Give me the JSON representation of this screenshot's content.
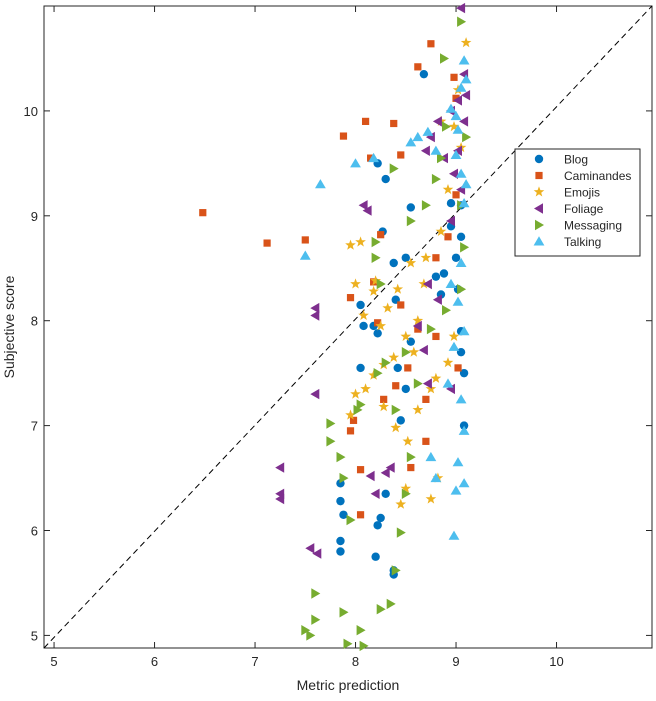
{
  "chart_data": {
    "type": "scatter",
    "xlabel": "Metric prediction",
    "ylabel": "Subjective score",
    "xlim": [
      4.9,
      10.95
    ],
    "ylim": [
      4.88,
      11.0
    ],
    "x_ticks": [
      5,
      6,
      7,
      8,
      9,
      10
    ],
    "y_ticks": [
      5,
      6,
      7,
      8,
      9,
      10
    ],
    "x_tick_labels": [
      "5",
      "6",
      "7",
      "8",
      "9",
      "10"
    ],
    "y_tick_labels": [
      "5",
      "6",
      "7",
      "8",
      "9",
      "10"
    ],
    "grid": false,
    "legend_position": "right",
    "reference_line": {
      "style": "dashed",
      "color": "#000000",
      "from": [
        4.9,
        4.88
      ],
      "to": [
        10.95,
        11.0
      ]
    },
    "series": [
      {
        "name": "Blog",
        "marker": "circle",
        "color": "#0072BD",
        "points": [
          [
            8.22,
            9.5
          ],
          [
            8.3,
            9.35
          ],
          [
            8.68,
            10.35
          ],
          [
            8.27,
            8.85
          ],
          [
            8.55,
            9.08
          ],
          [
            8.38,
            8.55
          ],
          [
            8.5,
            8.6
          ],
          [
            8.88,
            8.45
          ],
          [
            8.05,
            8.15
          ],
          [
            8.18,
            7.95
          ],
          [
            8.08,
            7.95
          ],
          [
            8.22,
            7.88
          ],
          [
            8.4,
            8.2
          ],
          [
            8.55,
            7.8
          ],
          [
            8.8,
            8.42
          ],
          [
            8.85,
            8.25
          ],
          [
            8.42,
            7.55
          ],
          [
            8.5,
            7.35
          ],
          [
            8.45,
            7.05
          ],
          [
            8.05,
            7.55
          ],
          [
            7.85,
            6.45
          ],
          [
            7.85,
            6.28
          ],
          [
            7.88,
            6.15
          ],
          [
            7.85,
            5.9
          ],
          [
            7.85,
            5.8
          ],
          [
            8.25,
            6.12
          ],
          [
            8.22,
            6.05
          ],
          [
            8.3,
            6.35
          ],
          [
            8.2,
            5.75
          ],
          [
            8.38,
            5.62
          ],
          [
            8.38,
            5.58
          ],
          [
            8.95,
            9.12
          ],
          [
            8.95,
            8.9
          ],
          [
            9.05,
            8.8
          ],
          [
            9.0,
            8.6
          ],
          [
            9.05,
            7.9
          ],
          [
            9.05,
            7.7
          ],
          [
            9.08,
            7.0
          ],
          [
            9.08,
            7.5
          ],
          [
            9.05,
            9.1
          ],
          [
            9.02,
            8.3
          ]
        ]
      },
      {
        "name": "Caminandes",
        "marker": "square",
        "color": "#D95319",
        "points": [
          [
            6.48,
            9.03
          ],
          [
            7.12,
            8.74
          ],
          [
            7.5,
            8.77
          ],
          [
            7.88,
            9.76
          ],
          [
            8.1,
            9.9
          ],
          [
            8.15,
            9.55
          ],
          [
            8.45,
            9.58
          ],
          [
            8.62,
            10.42
          ],
          [
            8.75,
            10.64
          ],
          [
            8.38,
            9.88
          ],
          [
            8.25,
            8.82
          ],
          [
            8.18,
            8.37
          ],
          [
            7.95,
            8.22
          ],
          [
            8.22,
            7.98
          ],
          [
            8.45,
            8.15
          ],
          [
            8.62,
            7.92
          ],
          [
            8.8,
            7.85
          ],
          [
            8.52,
            7.55
          ],
          [
            8.4,
            7.38
          ],
          [
            8.28,
            7.25
          ],
          [
            8.7,
            7.25
          ],
          [
            7.98,
            7.05
          ],
          [
            7.95,
            6.95
          ],
          [
            8.05,
            6.58
          ],
          [
            8.05,
            6.15
          ],
          [
            8.55,
            6.6
          ],
          [
            8.7,
            6.85
          ],
          [
            8.8,
            8.6
          ],
          [
            8.92,
            8.8
          ],
          [
            9.0,
            9.2
          ],
          [
            9.0,
            10.12
          ],
          [
            8.98,
            10.32
          ],
          [
            9.02,
            7.55
          ]
        ]
      },
      {
        "name": "Emojis",
        "marker": "pentagram",
        "color": "#EDB120",
        "points": [
          [
            7.95,
            8.72
          ],
          [
            8.0,
            8.35
          ],
          [
            8.08,
            8.05
          ],
          [
            8.18,
            8.28
          ],
          [
            8.32,
            8.12
          ],
          [
            8.42,
            8.3
          ],
          [
            8.55,
            8.55
          ],
          [
            8.7,
            8.6
          ],
          [
            8.85,
            8.85
          ],
          [
            8.92,
            9.25
          ],
          [
            8.98,
            9.85
          ],
          [
            9.02,
            10.2
          ],
          [
            9.1,
            10.65
          ],
          [
            9.05,
            9.65
          ],
          [
            8.85,
            9.9
          ],
          [
            8.68,
            8.35
          ],
          [
            8.62,
            8.0
          ],
          [
            8.5,
            7.85
          ],
          [
            8.38,
            7.65
          ],
          [
            8.28,
            7.58
          ],
          [
            8.18,
            7.48
          ],
          [
            8.1,
            7.35
          ],
          [
            8.0,
            7.3
          ],
          [
            7.95,
            7.1
          ],
          [
            8.28,
            7.18
          ],
          [
            8.4,
            6.98
          ],
          [
            8.52,
            6.85
          ],
          [
            8.62,
            7.15
          ],
          [
            8.75,
            7.35
          ],
          [
            8.8,
            7.45
          ],
          [
            8.92,
            7.6
          ],
          [
            8.98,
            7.85
          ],
          [
            8.5,
            6.4
          ],
          [
            8.45,
            6.25
          ],
          [
            8.75,
            6.3
          ],
          [
            8.82,
            6.5
          ],
          [
            8.58,
            7.7
          ],
          [
            8.25,
            7.95
          ],
          [
            8.2,
            8.38
          ],
          [
            8.05,
            8.75
          ]
        ]
      },
      {
        "name": "Foliage",
        "marker": "triangle-left",
        "color": "#7E2F8E",
        "points": [
          [
            9.05,
            10.98
          ],
          [
            9.08,
            10.35
          ],
          [
            9.02,
            10.1
          ],
          [
            8.95,
            10.0
          ],
          [
            8.82,
            9.9
          ],
          [
            8.75,
            9.75
          ],
          [
            8.7,
            9.62
          ],
          [
            8.88,
            9.55
          ],
          [
            8.98,
            9.4
          ],
          [
            9.05,
            9.25
          ],
          [
            8.12,
            9.05
          ],
          [
            8.08,
            9.1
          ],
          [
            7.6,
            8.12
          ],
          [
            7.6,
            8.05
          ],
          [
            7.25,
            6.6
          ],
          [
            7.25,
            6.35
          ],
          [
            7.25,
            6.3
          ],
          [
            7.62,
            5.78
          ],
          [
            7.55,
            5.83
          ],
          [
            7.6,
            7.3
          ],
          [
            8.3,
            6.55
          ],
          [
            8.35,
            6.6
          ],
          [
            8.2,
            6.35
          ],
          [
            8.15,
            6.52
          ],
          [
            8.72,
            7.4
          ],
          [
            8.68,
            7.72
          ],
          [
            8.62,
            7.95
          ],
          [
            8.72,
            8.35
          ],
          [
            8.82,
            8.2
          ],
          [
            8.95,
            8.95
          ],
          [
            9.02,
            9.62
          ],
          [
            9.08,
            9.9
          ],
          [
            9.1,
            10.15
          ],
          [
            8.95,
            7.35
          ]
        ]
      },
      {
        "name": "Messaging",
        "marker": "triangle-right",
        "color": "#77AC30",
        "points": [
          [
            9.05,
            10.85
          ],
          [
            8.88,
            10.5
          ],
          [
            8.9,
            9.85
          ],
          [
            8.85,
            9.55
          ],
          [
            8.8,
            9.35
          ],
          [
            8.7,
            9.1
          ],
          [
            8.55,
            8.95
          ],
          [
            8.38,
            9.45
          ],
          [
            8.2,
            8.75
          ],
          [
            8.25,
            8.35
          ],
          [
            8.3,
            7.6
          ],
          [
            8.22,
            7.5
          ],
          [
            8.05,
            7.2
          ],
          [
            8.02,
            7.15
          ],
          [
            7.75,
            7.02
          ],
          [
            7.75,
            6.85
          ],
          [
            7.85,
            6.7
          ],
          [
            7.95,
            6.1
          ],
          [
            7.88,
            6.5
          ],
          [
            7.6,
            5.4
          ],
          [
            7.6,
            5.15
          ],
          [
            7.55,
            5.0
          ],
          [
            7.5,
            5.05
          ],
          [
            7.88,
            5.22
          ],
          [
            8.05,
            5.05
          ],
          [
            7.92,
            4.92
          ],
          [
            8.08,
            4.9
          ],
          [
            8.25,
            5.25
          ],
          [
            8.35,
            5.3
          ],
          [
            8.4,
            5.62
          ],
          [
            8.45,
            5.98
          ],
          [
            8.5,
            6.35
          ],
          [
            8.55,
            6.7
          ],
          [
            8.4,
            7.15
          ],
          [
            8.62,
            7.4
          ],
          [
            8.75,
            7.92
          ],
          [
            8.9,
            8.1
          ],
          [
            9.05,
            8.3
          ],
          [
            9.08,
            8.7
          ],
          [
            9.05,
            9.1
          ],
          [
            9.1,
            9.75
          ],
          [
            8.2,
            8.6
          ],
          [
            8.5,
            7.7
          ]
        ]
      },
      {
        "name": "Talking",
        "marker": "triangle-up",
        "color": "#4DBEEE",
        "points": [
          [
            7.5,
            8.62
          ],
          [
            7.65,
            9.3
          ],
          [
            8.0,
            9.5
          ],
          [
            8.18,
            9.55
          ],
          [
            8.55,
            9.7
          ],
          [
            8.62,
            9.75
          ],
          [
            8.72,
            9.8
          ],
          [
            8.8,
            9.62
          ],
          [
            9.0,
            9.58
          ],
          [
            9.1,
            9.3
          ],
          [
            8.95,
            10.02
          ],
          [
            9.05,
            10.22
          ],
          [
            9.08,
            10.48
          ],
          [
            9.02,
            9.82
          ],
          [
            9.08,
            9.12
          ],
          [
            9.05,
            8.55
          ],
          [
            9.02,
            8.18
          ],
          [
            9.08,
            7.9
          ],
          [
            8.98,
            7.75
          ],
          [
            8.92,
            7.4
          ],
          [
            9.05,
            7.25
          ],
          [
            9.08,
            6.95
          ],
          [
            9.02,
            6.65
          ],
          [
            9.08,
            6.45
          ],
          [
            9.0,
            6.38
          ],
          [
            8.98,
            5.95
          ],
          [
            8.8,
            6.5
          ],
          [
            8.75,
            6.7
          ],
          [
            8.95,
            8.35
          ],
          [
            9.05,
            9.4
          ],
          [
            9.0,
            9.95
          ],
          [
            9.1,
            10.3
          ]
        ]
      }
    ]
  }
}
